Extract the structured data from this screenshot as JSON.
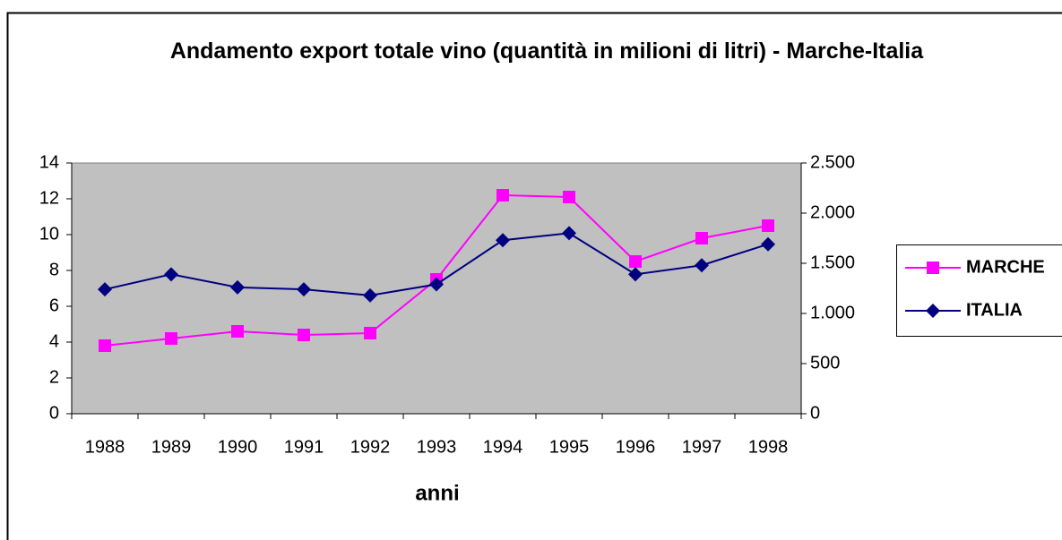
{
  "chart_data": {
    "type": "line",
    "title": "Andamento export totale vino (quantità in milioni di litri) - Marche-Italia",
    "x_label": "anni",
    "categories": [
      "1988",
      "1989",
      "1990",
      "1991",
      "1992",
      "1993",
      "1994",
      "1995",
      "1996",
      "1997",
      "1998"
    ],
    "series": [
      {
        "name": "MARCHE",
        "color": "#ff00ff",
        "marker": "square",
        "values": [
          3.8,
          4.2,
          4.6,
          4.4,
          4.5,
          7.5,
          12.2,
          12.1,
          8.5,
          9.8,
          10.5
        ]
      },
      {
        "name": "ITALIA",
        "color": "#000080",
        "marker": "diamond",
        "axis": "y2",
        "values": [
          1240,
          1390,
          1260,
          1240,
          1180,
          1290,
          1730,
          1800,
          1390,
          1480,
          1690
        ]
      }
    ],
    "ylim": [
      0,
      14
    ],
    "yticks": [
      0,
      2,
      4,
      6,
      8,
      10,
      12,
      14
    ],
    "y2lim": [
      0,
      2500
    ],
    "y2ticks": [
      0,
      500,
      {
        "value": 1000,
        "label": "1.000"
      },
      {
        "value": 1500,
        "label": "1.500"
      },
      {
        "value": 2000,
        "label": "2.000"
      },
      {
        "value": 2500,
        "label": "2.500"
      }
    ],
    "legend": "right",
    "plot_background": "#c0c0c0"
  }
}
